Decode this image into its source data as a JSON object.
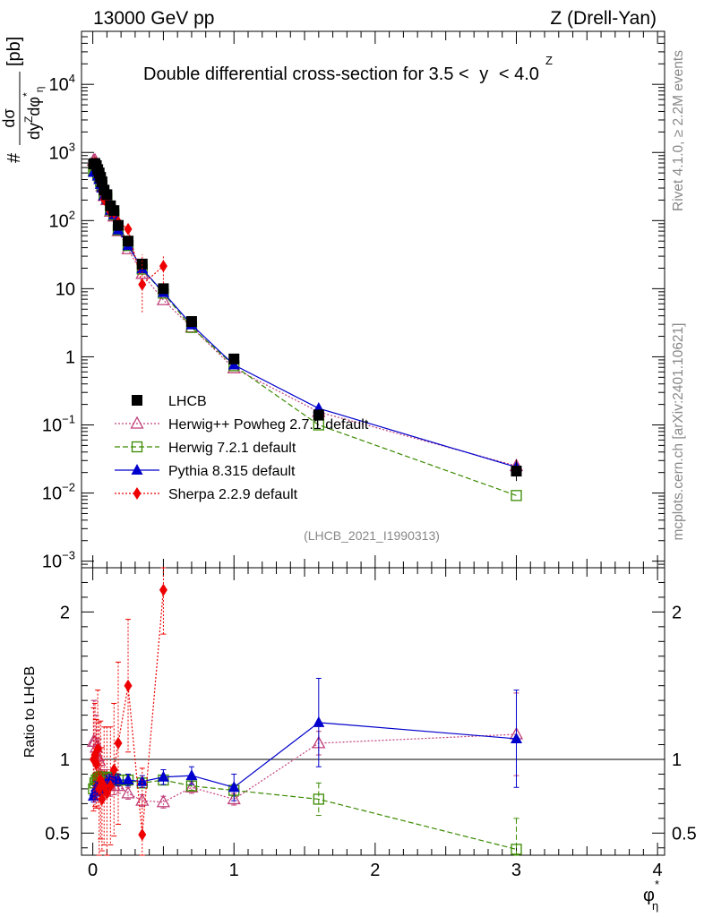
{
  "header": {
    "left": "13000 GeV pp",
    "right": "Z (Drell-Yan)"
  },
  "side_text": {
    "rivet": "Rivet 4.1.0, ≥ 2.2M events",
    "mcplots": "mcplots.cern.ch [arXiv:2401.10621]"
  },
  "analysis_id": "(LHCB_2021_I1990313)",
  "chart_data": [
    {
      "type": "scatter",
      "scale": "log",
      "title": "Double differential cross-section for 3.5 < y^Z < 4.0",
      "title_main": "Double differential cross-section for 3.5 <",
      "title_tail": "< 4.0",
      "title_var": "y",
      "title_var_sup": "Z",
      "ylabel": "dσ / dy^Z dφ*_η [pb]",
      "ylabel_parts": {
        "hash": "#",
        "num": "dσ",
        "den": "dy",
        "den_sup": "Z",
        "den_tail": "dφ",
        "den_star": "*",
        "den_sub": "η",
        "unit": "[pb]"
      },
      "ylim": [
        0.0008,
        60000
      ],
      "yticks": [
        {
          "value": 0.001,
          "base": "10",
          "exp": "−3"
        },
        {
          "value": 0.01,
          "base": "10",
          "exp": "−2"
        },
        {
          "value": 0.1,
          "base": "10",
          "exp": "−1"
        },
        {
          "value": 1,
          "base": "1",
          "exp": ""
        },
        {
          "value": 10,
          "base": "10",
          "exp": ""
        },
        {
          "value": 100,
          "base": "10",
          "exp": "2"
        },
        {
          "value": 1000,
          "base": "10",
          "exp": "3"
        },
        {
          "value": 10000,
          "base": "10",
          "exp": "4"
        }
      ],
      "xlim": [
        -0.08,
        4.05
      ],
      "x": [
        0.005,
        0.015,
        0.025,
        0.035,
        0.045,
        0.055,
        0.065,
        0.08,
        0.1,
        0.125,
        0.15,
        0.18,
        0.25,
        0.35,
        0.5,
        0.7,
        1.0,
        1.6,
        3.0
      ],
      "series": [
        {
          "name": "LHCB",
          "color": "#000000",
          "marker": "square",
          "line": "none",
          "values": [
            680,
            690,
            640,
            560,
            500,
            430,
            370,
            280,
            240,
            165,
            140,
            85,
            50,
            23,
            10,
            3.3,
            0.93,
            0.14,
            0.021
          ]
        },
        {
          "name": "Herwig++ Powheg 2.7.1 default",
          "color": "#c0407a",
          "marker": "triangle-open",
          "line": "dotted",
          "values": [
            760,
            770,
            690,
            600,
            530,
            420,
            320,
            230,
            200,
            135,
            115,
            70,
            38,
            16.5,
            6.8,
            2.7,
            0.68,
            0.155,
            0.025
          ]
        },
        {
          "name": "Herwig 7.2.1 default",
          "color": "#3a8a00",
          "marker": "square-open",
          "line": "dashed",
          "values": [
            540,
            580,
            550,
            490,
            440,
            370,
            320,
            240,
            210,
            143,
            122,
            73,
            43,
            19.4,
            8.6,
            2.7,
            0.74,
            0.1,
            0.0092
          ]
        },
        {
          "name": "Pythia 8.315 default",
          "color": "#0000cc",
          "marker": "triangle",
          "line": "solid",
          "values": [
            510,
            540,
            520,
            450,
            400,
            340,
            300,
            230,
            205,
            142,
            122,
            73,
            43,
            19.6,
            8.8,
            2.95,
            0.76,
            0.175,
            0.024
          ]
        },
        {
          "name": "Sherpa 2.2.9 default",
          "color": "#ee0000",
          "marker": "diamond",
          "line": "dotted",
          "values": [
            680,
            710,
            620,
            600,
            400,
            370,
            270,
            205,
            185,
            135,
            130,
            95,
            75,
            11.5,
            21.5
          ]
        }
      ]
    },
    {
      "type": "scatter",
      "ylabel": "Ratio to LHCB",
      "ylim": [
        0.35,
        2.3
      ],
      "yticks": [
        {
          "value": 0.5,
          "label": "0.5"
        },
        {
          "value": 1,
          "label": "1"
        },
        {
          "value": 2,
          "label": "2"
        }
      ],
      "xlim": [
        -0.08,
        4.05
      ],
      "xticks": [
        {
          "value": 0,
          "label": "0"
        },
        {
          "value": 1,
          "label": "1"
        },
        {
          "value": 2,
          "label": "2"
        },
        {
          "value": 3,
          "label": "3"
        },
        {
          "value": 4,
          "label": "4"
        }
      ],
      "xlabel": "φ*_η",
      "xlabel_parts": {
        "main": "φ",
        "star": "*",
        "sub": "η"
      },
      "x": [
        0.005,
        0.015,
        0.025,
        0.035,
        0.045,
        0.055,
        0.065,
        0.08,
        0.1,
        0.125,
        0.15,
        0.18,
        0.25,
        0.35,
        0.5,
        0.7,
        1.0,
        1.6,
        3.0
      ],
      "series": [
        {
          "name": "Herwig++ Powheg 2.7.1 default",
          "color": "#c0407a",
          "marker": "triangle-open",
          "line": "dotted",
          "values": [
            1.12,
            1.12,
            1.08,
            1.02,
            0.99,
            0.88,
            0.83,
            0.83,
            0.85,
            0.82,
            0.82,
            0.82,
            0.77,
            0.72,
            0.71,
            0.81,
            0.73,
            1.11,
            1.17
          ],
          "errors": [
            0.28,
            0.28,
            0.22,
            0.18,
            0.15,
            0.12,
            0.1,
            0.09,
            0.08,
            0.07,
            0.06,
            0.05,
            0.04,
            0.04,
            0.04,
            0.04,
            0.04,
            0.08,
            0.28
          ]
        },
        {
          "name": "Herwig 7.2.1 default",
          "color": "#3a8a00",
          "marker": "square-open",
          "line": "dashed",
          "values": [
            0.8,
            0.84,
            0.86,
            0.87,
            0.88,
            0.86,
            0.87,
            0.87,
            0.88,
            0.87,
            0.87,
            0.86,
            0.86,
            0.84,
            0.86,
            0.82,
            0.79,
            0.73,
            0.39
          ],
          "errors": [
            0.05,
            0.04,
            0.04,
            0.04,
            0.04,
            0.03,
            0.03,
            0.03,
            0.03,
            0.03,
            0.03,
            0.03,
            0.03,
            0.03,
            0.03,
            0.03,
            0.04,
            0.11,
            0.21
          ]
        },
        {
          "name": "Pythia 8.315 default",
          "color": "#0000cc",
          "marker": "triangle",
          "line": "solid",
          "values": [
            0.75,
            0.78,
            0.81,
            0.8,
            0.8,
            0.79,
            0.81,
            0.82,
            0.85,
            0.86,
            0.87,
            0.86,
            0.86,
            0.85,
            0.88,
            0.89,
            0.81,
            1.25,
            1.14
          ],
          "errors": [
            0.04,
            0.04,
            0.04,
            0.04,
            0.04,
            0.04,
            0.04,
            0.04,
            0.04,
            0.04,
            0.04,
            0.04,
            0.04,
            0.04,
            0.05,
            0.06,
            0.09,
            0.3,
            0.33
          ]
        },
        {
          "name": "Sherpa 2.2.9 default",
          "color": "#ee0000",
          "marker": "diamond",
          "line": "dotted",
          "values": [
            1.0,
            1.03,
            0.97,
            1.07,
            0.8,
            0.86,
            0.73,
            0.82,
            0.77,
            0.82,
            0.93,
            1.11,
            1.5,
            0.49,
            2.15
          ],
          "errors": [
            0.35,
            0.35,
            0.3,
            0.4,
            0.45,
            0.4,
            0.35,
            0.4,
            0.45,
            0.4,
            0.45,
            0.55,
            0.45,
            0.45,
            0.3
          ]
        }
      ]
    }
  ]
}
